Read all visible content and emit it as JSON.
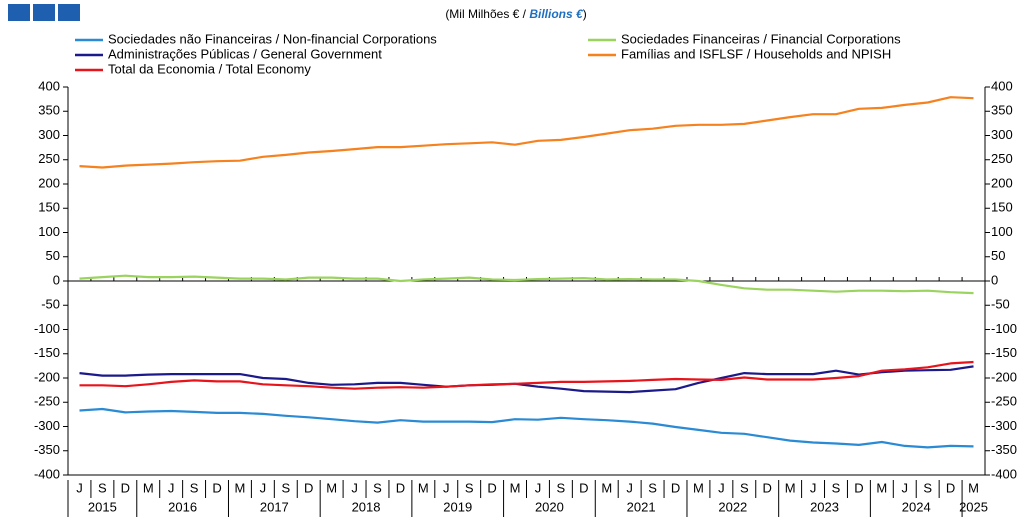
{
  "chart_data": {
    "type": "line",
    "subtitle": [
      "(Mil Milhões € / ",
      "Billions €",
      ")"
    ],
    "categories": [
      "J",
      "S",
      "D",
      "M",
      "J",
      "S",
      "D",
      "M",
      "J",
      "S",
      "D",
      "M",
      "J",
      "S",
      "D",
      "M",
      "J",
      "S",
      "D",
      "M",
      "J",
      "S",
      "D",
      "M",
      "J",
      "S",
      "D",
      "M",
      "J",
      "S",
      "D",
      "M",
      "J",
      "S",
      "D",
      "M",
      "J",
      "S",
      "D",
      "M"
    ],
    "years": [
      "2015",
      "2016",
      "2017",
      "2018",
      "2019",
      "2020",
      "2021",
      "2022",
      "2023",
      "2024",
      "2025"
    ],
    "series": [
      {
        "name": "Sociedades não Financeiras / Non-financial Corporations",
        "color": "#2a8bd4",
        "values": [
          -267,
          -264,
          -271,
          -269,
          -268,
          -270,
          -272,
          -272,
          -274,
          -278,
          -281,
          -285,
          -289,
          -292,
          -287,
          -290,
          -290,
          -290,
          -291,
          -285,
          -286,
          -282,
          -285,
          -287,
          -290,
          -294,
          -301,
          -307,
          -313,
          -315,
          -322,
          -329,
          -333,
          -335,
          -338,
          -332,
          -340,
          -343,
          -340,
          -341
        ]
      },
      {
        "name": "Sociedades Financeiras / Financial Corporations",
        "color": "#9bd35f",
        "values": [
          5,
          8,
          11,
          8,
          8,
          9,
          7,
          5,
          5,
          3,
          7,
          7,
          5,
          5,
          0,
          3,
          5,
          7,
          3,
          2,
          4,
          5,
          6,
          3,
          4,
          3,
          3,
          0,
          -8,
          -15,
          -18,
          -18,
          -20,
          -22,
          -20,
          -20,
          -21,
          -20,
          -23,
          -25
        ]
      },
      {
        "name": "Administrações Públicas / General Government",
        "color": "#1c1a8a",
        "values": [
          -190,
          -195,
          -195,
          -193,
          -192,
          -192,
          -192,
          -192,
          -200,
          -202,
          -210,
          -214,
          -213,
          -210,
          -210,
          -214,
          -218,
          -215,
          -214,
          -212,
          -218,
          -222,
          -227,
          -228,
          -229,
          -226,
          -223,
          -210,
          -200,
          -190,
          -192,
          -192,
          -192,
          -185,
          -193,
          -188,
          -185,
          -184,
          -183,
          -176
        ]
      },
      {
        "name": "Famílias and ISFLSF / Households and NPISH",
        "color": "#f5821f",
        "values": [
          237,
          234,
          238,
          240,
          242,
          245,
          247,
          248,
          256,
          260,
          265,
          268,
          272,
          276,
          276,
          279,
          282,
          284,
          286,
          281,
          289,
          291,
          297,
          304,
          311,
          314,
          320,
          322,
          322,
          324,
          331,
          338,
          344,
          344,
          355,
          357,
          363,
          368,
          379,
          377
        ]
      },
      {
        "name": "Total da Economia / Total Economy",
        "color": "#e8141b",
        "values": [
          -215,
          -215,
          -217,
          -213,
          -208,
          -205,
          -207,
          -207,
          -213,
          -215,
          -217,
          -220,
          -222,
          -220,
          -219,
          -220,
          -218,
          -215,
          -213,
          -212,
          -210,
          -208,
          -208,
          -207,
          -206,
          -204,
          -202,
          -203,
          -204,
          -199,
          -203,
          -203,
          -203,
          -200,
          -196,
          -185,
          -182,
          -178,
          -170,
          -167
        ]
      }
    ],
    "ylim": [
      -400,
      400
    ],
    "yticks": [
      -400,
      -350,
      -300,
      -250,
      -200,
      -150,
      -100,
      -50,
      0,
      50,
      100,
      150,
      200,
      250,
      300,
      350,
      400
    ],
    "grid": false
  }
}
